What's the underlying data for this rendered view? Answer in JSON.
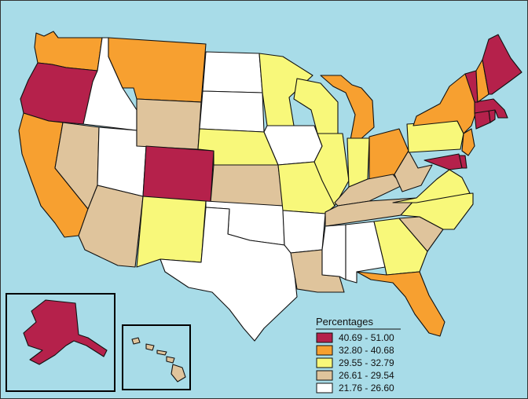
{
  "legend": {
    "title": "Percentages",
    "classes": [
      {
        "label": "40.69 - 51.00",
        "color": "#b5214b"
      },
      {
        "label": "32.80 - 40.68",
        "color": "#f7a030"
      },
      {
        "label": "29.55 - 32.79",
        "color": "#f8f87a"
      },
      {
        "label": "26.61 - 29.54",
        "color": "#dfc49c"
      },
      {
        "label": "21.76 - 26.60",
        "color": "#ffffff"
      }
    ]
  },
  "colors": {
    "water": "#a8dce8",
    "outline": "#111111"
  },
  "states": [
    {
      "name": "WA",
      "cls": 1
    },
    {
      "name": "OR",
      "cls": 0
    },
    {
      "name": "CA",
      "cls": 1
    },
    {
      "name": "ID",
      "cls": 4
    },
    {
      "name": "NV",
      "cls": 3
    },
    {
      "name": "UT",
      "cls": 4
    },
    {
      "name": "AZ",
      "cls": 3
    },
    {
      "name": "MT",
      "cls": 1
    },
    {
      "name": "WY",
      "cls": 3
    },
    {
      "name": "CO",
      "cls": 0
    },
    {
      "name": "NM",
      "cls": 2
    },
    {
      "name": "ND",
      "cls": 4
    },
    {
      "name": "SD",
      "cls": 4
    },
    {
      "name": "NE",
      "cls": 2
    },
    {
      "name": "KS",
      "cls": 3
    },
    {
      "name": "OK",
      "cls": 4
    },
    {
      "name": "TX",
      "cls": 4
    },
    {
      "name": "MN",
      "cls": 2
    },
    {
      "name": "IA",
      "cls": 4
    },
    {
      "name": "MO",
      "cls": 2
    },
    {
      "name": "AR",
      "cls": 4
    },
    {
      "name": "LA",
      "cls": 3
    },
    {
      "name": "WI",
      "cls": 2
    },
    {
      "name": "IL",
      "cls": 2
    },
    {
      "name": "MI",
      "cls": 1
    },
    {
      "name": "IN",
      "cls": 2
    },
    {
      "name": "OH",
      "cls": 1
    },
    {
      "name": "KY",
      "cls": 3
    },
    {
      "name": "TN",
      "cls": 3
    },
    {
      "name": "MS",
      "cls": 4
    },
    {
      "name": "AL",
      "cls": 4
    },
    {
      "name": "GA",
      "cls": 2
    },
    {
      "name": "FL",
      "cls": 1
    },
    {
      "name": "SC",
      "cls": 3
    },
    {
      "name": "NC",
      "cls": 2
    },
    {
      "name": "VA",
      "cls": 2
    },
    {
      "name": "WV",
      "cls": 3
    },
    {
      "name": "PA",
      "cls": 2
    },
    {
      "name": "NY",
      "cls": 1
    },
    {
      "name": "NJ",
      "cls": 1
    },
    {
      "name": "DE",
      "cls": 0
    },
    {
      "name": "MD",
      "cls": 0
    },
    {
      "name": "CT",
      "cls": 0
    },
    {
      "name": "RI",
      "cls": 0
    },
    {
      "name": "MA",
      "cls": 0
    },
    {
      "name": "VT",
      "cls": 0
    },
    {
      "name": "NH",
      "cls": 1
    },
    {
      "name": "ME",
      "cls": 0
    },
    {
      "name": "AK",
      "cls": 0
    },
    {
      "name": "HI",
      "cls": 3
    }
  ]
}
